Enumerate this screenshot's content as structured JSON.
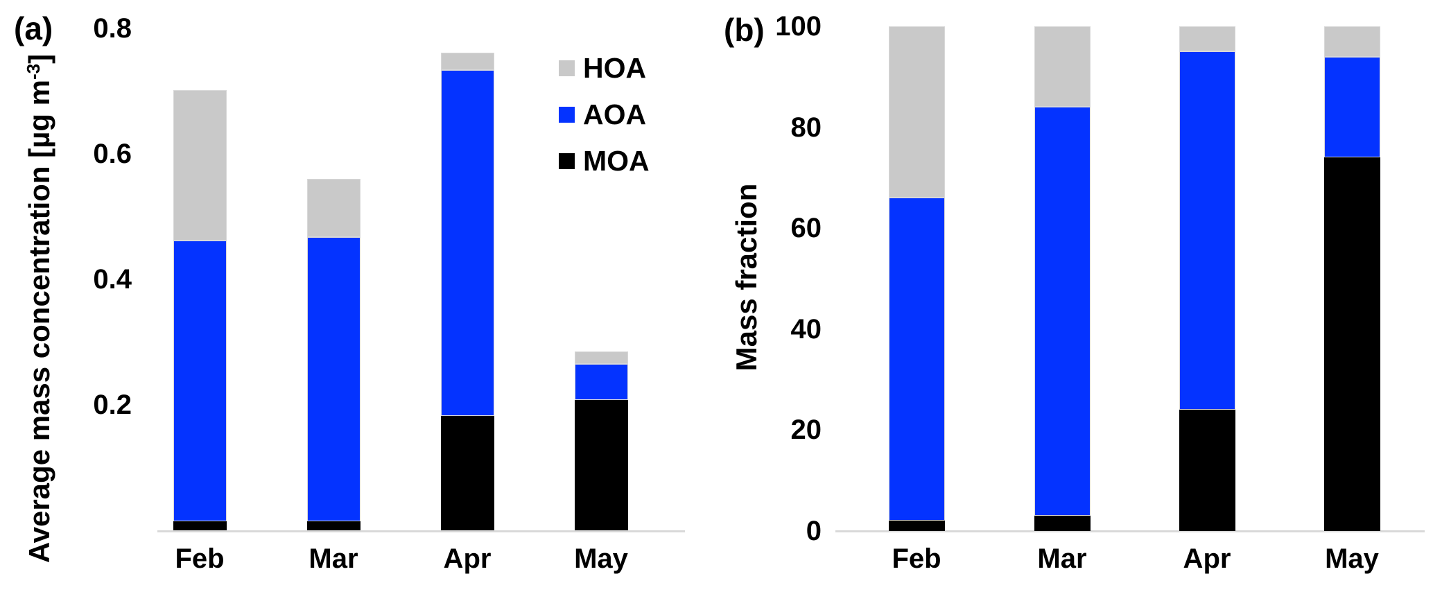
{
  "figure": {
    "panel_a_label": "(a)",
    "panel_b_label": "(b)"
  },
  "colors": {
    "HOA": "#c9c9c9",
    "AOA": "#0433ff",
    "MOA": "#000000",
    "axis_line": "#d9d9d9",
    "background": "#ffffff",
    "text": "#000000"
  },
  "legend": {
    "position": "upper right of panel (a)",
    "items": [
      {
        "label": "HOA",
        "color": "#c9c9c9"
      },
      {
        "label": "AOA",
        "color": "#0433ff"
      },
      {
        "label": "MOA",
        "color": "#000000"
      }
    ]
  },
  "chart_data": [
    {
      "id": "a",
      "type": "bar",
      "stacked": true,
      "ylabel": "Average mass concentration [µg m⁻³]",
      "ylabel_pre": "Average mass concentration [µg m",
      "ylabel_sup": "-3",
      "ylabel_post": "]",
      "categories": [
        "Feb",
        "Mar",
        "Apr",
        "May"
      ],
      "series": [
        {
          "name": "MOA",
          "color": "#000000",
          "values": [
            0.015,
            0.015,
            0.183,
            0.208
          ]
        },
        {
          "name": "AOA",
          "color": "#0433ff",
          "values": [
            0.447,
            0.453,
            0.551,
            0.058
          ]
        },
        {
          "name": "HOA",
          "color": "#c9c9c9",
          "values": [
            0.24,
            0.092,
            0.027,
            0.019
          ]
        }
      ],
      "stack_totals": [
        0.7,
        0.56,
        0.76,
        0.29
      ],
      "ylim": [
        0,
        0.8
      ],
      "yticks": [
        {
          "label": "0.8",
          "value": 0.8
        },
        {
          "label": "0.6",
          "value": 0.6
        },
        {
          "label": "0.4",
          "value": 0.4
        },
        {
          "label": "0.2",
          "value": 0.2
        }
      ],
      "grid": false,
      "legend_position": "upper right inside plot"
    },
    {
      "id": "b",
      "type": "bar",
      "stacked": true,
      "ylabel": "Mass fraction",
      "categories": [
        "Feb",
        "Mar",
        "Apr",
        "May"
      ],
      "series": [
        {
          "name": "MOA",
          "color": "#000000",
          "values": [
            2,
            3,
            24,
            74
          ]
        },
        {
          "name": "AOA",
          "color": "#0433ff",
          "values": [
            64,
            81,
            71,
            20
          ]
        },
        {
          "name": "HOA",
          "color": "#c9c9c9",
          "values": [
            34,
            16,
            5,
            6
          ]
        }
      ],
      "stack_totals": [
        100,
        100,
        100,
        100
      ],
      "ylim": [
        0,
        100
      ],
      "yticks": [
        {
          "label": "100",
          "value": 100
        },
        {
          "label": "80",
          "value": 80
        },
        {
          "label": "60",
          "value": 60
        },
        {
          "label": "40",
          "value": 40
        },
        {
          "label": "20",
          "value": 20
        },
        {
          "label": "0",
          "value": 0
        }
      ],
      "grid": false
    }
  ]
}
